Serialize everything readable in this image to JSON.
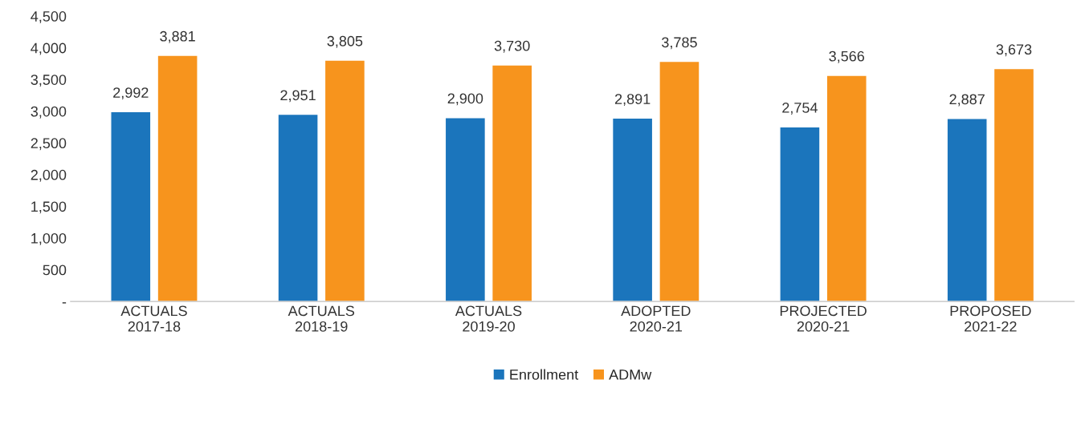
{
  "chart_data": {
    "type": "bar",
    "categories": [
      "ACTUALS\n2017-18",
      "ACTUALS\n2018-19",
      "ACTUALS\n2019-20",
      "ADOPTED\n2020-21",
      "PROJECTED\n2020-21",
      "PROPOSED\n2021-22"
    ],
    "series": [
      {
        "name": "Enrollment",
        "color": "#1b75bc",
        "values": [
          2992,
          2951,
          2900,
          2891,
          2754,
          2887
        ],
        "value_labels": [
          "2,992",
          "2,951",
          "2,900",
          "2,891",
          "2,754",
          "2,887"
        ]
      },
      {
        "name": "ADMw",
        "color": "#f7941d",
        "values": [
          3881,
          3805,
          3730,
          3785,
          3566,
          3673
        ],
        "value_labels": [
          "3,881",
          "3,805",
          "3,730",
          "3,785",
          "3,566",
          "3,673"
        ]
      }
    ],
    "ylim": [
      0,
      4500
    ],
    "yticks": [
      {
        "value": 0,
        "label": "-"
      },
      {
        "value": 500,
        "label": "500"
      },
      {
        "value": 1000,
        "label": "1,000"
      },
      {
        "value": 1500,
        "label": "1,500"
      },
      {
        "value": 2000,
        "label": "2,000"
      },
      {
        "value": 2500,
        "label": "2,500"
      },
      {
        "value": 3000,
        "label": "3,000"
      },
      {
        "value": 3500,
        "label": "3,500"
      },
      {
        "value": 4000,
        "label": "4,000"
      },
      {
        "value": 4500,
        "label": "4,500"
      }
    ],
    "grid": false,
    "legend": "bottom"
  }
}
